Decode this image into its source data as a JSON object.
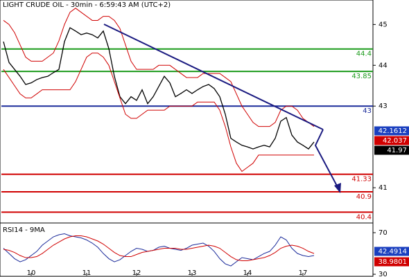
{
  "chart_data": [
    {
      "type": "line",
      "title": "LIGHT CRUDE OIL - 30min - 6:59:43 AM (UTC+2)",
      "ylim": [
        40.0,
        45.6
      ],
      "yticks": [
        45,
        44,
        43,
        41
      ],
      "series": [
        {
          "name": "Price",
          "color": "#000000",
          "values": [
            44.58,
            44.07,
            43.9,
            43.73,
            43.53,
            43.57,
            43.65,
            43.7,
            43.73,
            43.82,
            43.9,
            44.58,
            44.92,
            44.84,
            44.75,
            44.79,
            44.75,
            44.67,
            44.84,
            44.41,
            43.73,
            43.23,
            43.06,
            43.23,
            43.14,
            43.4,
            43.06,
            43.23,
            43.48,
            43.73,
            43.57,
            43.23,
            43.31,
            43.4,
            43.31,
            43.4,
            43.48,
            43.53,
            43.43,
            43.23,
            42.8,
            42.21,
            42.12,
            42.04,
            42.0,
            41.95,
            42.0,
            42.04,
            42.0,
            42.21,
            42.63,
            42.72,
            42.29,
            42.12,
            42.04,
            41.95,
            42.12
          ]
        },
        {
          "name": "Upper band",
          "color": "#d00000",
          "values": [
            45.1,
            45.0,
            44.8,
            44.5,
            44.2,
            44.1,
            44.1,
            44.1,
            44.2,
            44.3,
            44.6,
            45.0,
            45.3,
            45.4,
            45.3,
            45.2,
            45.1,
            45.1,
            45.2,
            45.2,
            45.1,
            44.9,
            44.5,
            44.1,
            43.9,
            43.9,
            43.9,
            43.9,
            44.0,
            44.0,
            44.0,
            43.9,
            43.8,
            43.7,
            43.7,
            43.7,
            43.8,
            43.8,
            43.8,
            43.8,
            43.7,
            43.6,
            43.3,
            43.0,
            42.8,
            42.6,
            42.5,
            42.5,
            42.5,
            42.6,
            42.9,
            43.0,
            43.0,
            42.9,
            42.7,
            42.6,
            42.5
          ]
        },
        {
          "name": "Lower band",
          "color": "#d00000",
          "values": [
            43.9,
            43.7,
            43.5,
            43.3,
            43.2,
            43.2,
            43.3,
            43.4,
            43.4,
            43.4,
            43.4,
            43.4,
            43.4,
            43.6,
            43.9,
            44.2,
            44.3,
            44.3,
            44.2,
            44.0,
            43.6,
            43.2,
            42.8,
            42.7,
            42.7,
            42.8,
            42.9,
            42.9,
            42.9,
            42.9,
            43.0,
            43.0,
            43.0,
            43.0,
            43.0,
            43.1,
            43.1,
            43.1,
            43.1,
            42.9,
            42.5,
            42.0,
            41.6,
            41.4,
            41.5,
            41.6,
            41.8,
            41.8,
            41.8,
            41.8,
            41.8,
            41.8,
            41.8,
            41.8,
            41.8,
            41.8,
            41.8
          ]
        }
      ],
      "levels": [
        {
          "value": 44.4,
          "color": "#1a9a1a"
        },
        {
          "value": 43.85,
          "color": "#1a9a1a"
        },
        {
          "value": 43,
          "color": "#1a2a9a"
        },
        {
          "value": 41.33,
          "color": "#d00000"
        },
        {
          "value": 40.9,
          "color": "#d00000"
        },
        {
          "value": 40.4,
          "color": "#d00000"
        }
      ],
      "price_labels": [
        {
          "value": 42.1612,
          "color": "#1a3fbf"
        },
        {
          "value": 42.037,
          "color": "#d00000"
        },
        {
          "value": 41.97,
          "color": "#000000"
        }
      ]
    },
    {
      "type": "line",
      "title": "RSI14 - 9MA",
      "ylim": [
        28.7,
        78
      ],
      "yticks": [
        70,
        30
      ],
      "categories": [
        null,
        null,
        null,
        null,
        null,
        "10",
        null,
        null,
        null,
        null,
        null,
        null,
        null,
        null,
        null,
        "11",
        null,
        null,
        null,
        null,
        null,
        null,
        null,
        null,
        "12",
        null,
        null,
        null,
        null,
        null,
        null,
        null,
        null,
        null,
        "13",
        null,
        null,
        null,
        null,
        null,
        null,
        null,
        null,
        null,
        "14",
        null,
        null,
        null,
        null,
        null,
        null,
        null,
        null,
        null,
        "17",
        null,
        null
      ],
      "series": [
        {
          "name": "RSI14",
          "color": "#1a2a9a",
          "values": [
            55,
            50,
            45,
            42,
            44,
            48,
            52,
            58,
            62,
            66,
            68,
            69,
            67,
            66,
            65,
            63,
            60,
            56,
            50,
            45,
            42,
            44,
            48,
            52,
            55,
            54,
            52,
            53,
            56,
            57,
            55,
            54,
            53,
            55,
            58,
            59,
            60,
            57,
            52,
            45,
            40,
            38,
            42,
            46,
            45,
            44,
            47,
            50,
            52,
            58,
            66,
            63,
            55,
            50,
            48,
            47,
            48
          ]
        },
        {
          "name": "9MA",
          "color": "#d00000",
          "values": [
            54,
            53,
            51,
            48,
            46,
            46,
            47,
            50,
            54,
            58,
            61,
            64,
            66,
            67,
            67,
            66,
            64,
            62,
            59,
            55,
            51,
            48,
            47,
            47,
            49,
            51,
            52,
            53,
            54,
            55,
            55,
            55,
            54,
            54,
            55,
            56,
            57,
            58,
            57,
            55,
            51,
            47,
            44,
            43,
            43,
            44,
            45,
            46,
            48,
            51,
            55,
            57,
            58,
            57,
            55,
            52,
            50
          ]
        }
      ],
      "price_labels": [
        {
          "value": 42.4914,
          "color": "#1a3fbf"
        },
        {
          "value": 38.9801,
          "color": "#d00000"
        }
      ]
    }
  ]
}
